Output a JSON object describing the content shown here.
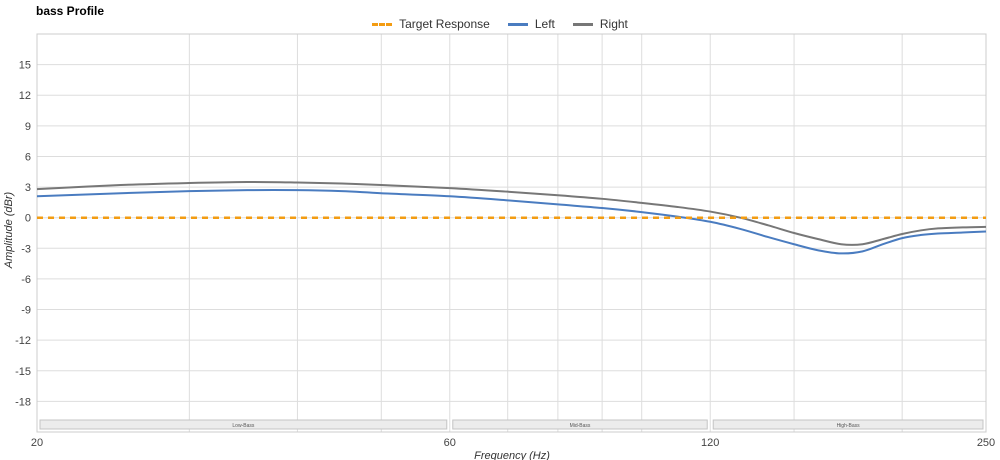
{
  "chart_data": {
    "type": "line",
    "title": "bass Profile",
    "xlabel": "Frequency (Hz)",
    "ylabel": "Amplitude (dBr)",
    "xscale": "log",
    "xlim": [
      20,
      250
    ],
    "ylim": [
      -21,
      18
    ],
    "x_ticks": [
      20,
      60,
      120,
      250
    ],
    "y_ticks": [
      15,
      12,
      9,
      6,
      3,
      0,
      -3,
      -6,
      -9,
      -12,
      -15,
      -18
    ],
    "legend_position": "top-center",
    "grid": true,
    "bands": [
      {
        "label": "Low-Bass",
        "from": 20,
        "to": 60
      },
      {
        "label": "Mid-Bass",
        "from": 60,
        "to": 120
      },
      {
        "label": "High-Bass",
        "from": 120,
        "to": 250
      }
    ],
    "series": [
      {
        "name": "Target Response",
        "color": "#f39c12",
        "style": "dashed",
        "points": [
          [
            20,
            0
          ],
          [
            250,
            0
          ]
        ]
      },
      {
        "name": "Left",
        "color": "#4a7cc0",
        "style": "solid",
        "points": [
          [
            20,
            2.1
          ],
          [
            25,
            2.4
          ],
          [
            30,
            2.6
          ],
          [
            35,
            2.7
          ],
          [
            40,
            2.7
          ],
          [
            45,
            2.6
          ],
          [
            50,
            2.4
          ],
          [
            60,
            2.1
          ],
          [
            70,
            1.7
          ],
          [
            80,
            1.3
          ],
          [
            90,
            0.95
          ],
          [
            100,
            0.55
          ],
          [
            110,
            0.1
          ],
          [
            120,
            -0.4
          ],
          [
            130,
            -1.1
          ],
          [
            140,
            -1.9
          ],
          [
            150,
            -2.6
          ],
          [
            160,
            -3.2
          ],
          [
            170,
            -3.5
          ],
          [
            180,
            -3.3
          ],
          [
            190,
            -2.6
          ],
          [
            200,
            -2.0
          ],
          [
            210,
            -1.7
          ],
          [
            220,
            -1.55
          ],
          [
            235,
            -1.45
          ],
          [
            250,
            -1.35
          ]
        ]
      },
      {
        "name": "Right",
        "color": "#777777",
        "style": "solid",
        "points": [
          [
            20,
            2.8
          ],
          [
            25,
            3.2
          ],
          [
            30,
            3.4
          ],
          [
            35,
            3.5
          ],
          [
            40,
            3.45
          ],
          [
            45,
            3.35
          ],
          [
            50,
            3.2
          ],
          [
            60,
            2.9
          ],
          [
            70,
            2.55
          ],
          [
            80,
            2.2
          ],
          [
            90,
            1.85
          ],
          [
            100,
            1.45
          ],
          [
            110,
            1.05
          ],
          [
            120,
            0.6
          ],
          [
            130,
            0.0
          ],
          [
            140,
            -0.75
          ],
          [
            150,
            -1.5
          ],
          [
            160,
            -2.1
          ],
          [
            170,
            -2.6
          ],
          [
            180,
            -2.6
          ],
          [
            190,
            -2.1
          ],
          [
            200,
            -1.6
          ],
          [
            210,
            -1.25
          ],
          [
            220,
            -1.05
          ],
          [
            235,
            -0.95
          ],
          [
            250,
            -0.9
          ]
        ]
      }
    ]
  }
}
